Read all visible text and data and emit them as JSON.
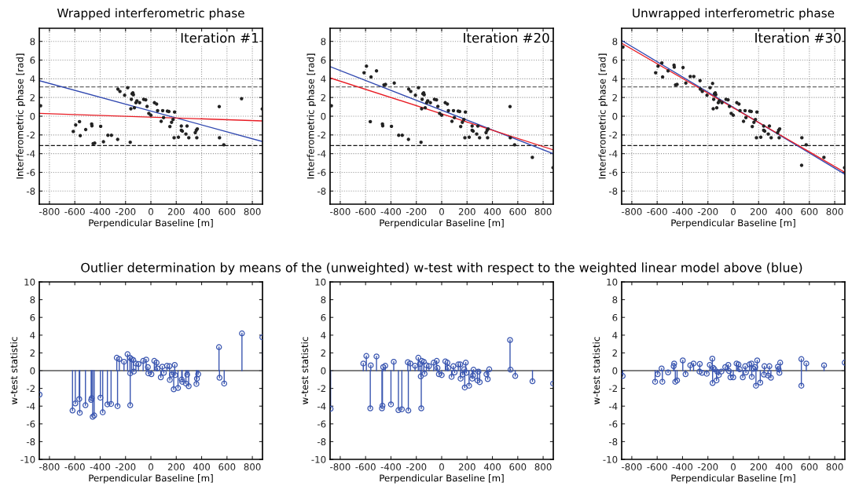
{
  "chart_data": [
    {
      "type": "scatter",
      "title": "Wrapped interferometric phase",
      "xlabel": "Perpendicular Baseline [m]",
      "ylabel": "Interferometric phase [rad]",
      "annotations": [
        "Iteration #1"
      ],
      "xlim": [
        -880,
        880
      ],
      "ylim": [
        -9.4,
        9.4
      ],
      "xticks": [
        -800,
        -600,
        -400,
        -200,
        0,
        200,
        400,
        600,
        800
      ],
      "yticks": [
        -8,
        -6,
        -4,
        -2,
        0,
        2,
        4,
        6,
        8
      ],
      "grid": true,
      "ref_lines": [
        {
          "axis": "y",
          "value": 3.14,
          "color": "#666666",
          "line_style": "dashed"
        },
        {
          "axis": "y",
          "value": -3.14,
          "color": "#111111",
          "line_style": "dashed"
        }
      ],
      "series": [
        {
          "type": "scatter",
          "color": "#222222",
          "marker": "circle",
          "x": [
            -870,
            -612,
            -593,
            -563,
            -557,
            -514,
            -467,
            -465,
            -455,
            -443,
            -396,
            -374,
            -339,
            -311,
            -262,
            -260,
            -244,
            -207,
            -183,
            -163,
            -148,
            -142,
            -138,
            -154,
            -158,
            -130,
            -118,
            -110,
            -89,
            -57,
            -41,
            -30,
            -16,
            0,
            28,
            45,
            53,
            81,
            93,
            100,
            130,
            142,
            150,
            163,
            175,
            187,
            183,
            217,
            240,
            240,
            248,
            276,
            285,
            299,
            350,
            358,
            366,
            362,
            539,
            541,
            575,
            715,
            878
          ],
          "values": [
            1.12,
            -1.63,
            -0.93,
            -0.58,
            -2.08,
            -1.43,
            -0.83,
            -1.03,
            -2.93,
            -2.88,
            -1.08,
            -2.73,
            -2.03,
            -2.03,
            -2.48,
            2.9,
            2.65,
            2.25,
            3.05,
            -2.78,
            2.4,
            2.5,
            2.3,
            1.8,
            0.8,
            0.9,
            1.45,
            1.65,
            1.45,
            1.8,
            1.75,
            1.05,
            0.3,
            0.1,
            1.45,
            1.3,
            0.6,
            -0.55,
            0.6,
            -0.15,
            0.55,
            0.5,
            -1.1,
            -0.65,
            -0.35,
            0.45,
            -2.3,
            -2.25,
            -1.05,
            -1.5,
            -1.6,
            -1.9,
            -1.05,
            -2.3,
            -1.75,
            -1.5,
            -1.35,
            -2.3,
            1.03,
            -2.3,
            -3.05,
            1.88,
            0.78
          ]
        },
        {
          "type": "line",
          "color": "#3048b0",
          "marker": "none",
          "x": [
            -880,
            880
          ],
          "values": [
            3.8,
            -2.7
          ]
        },
        {
          "type": "line",
          "color": "#e81c24",
          "marker": "none",
          "x": [
            -880,
            880
          ],
          "values": [
            0.3,
            -0.5
          ]
        }
      ]
    },
    {
      "type": "scatter",
      "xlabel": "Perpendicular Baseline [m]",
      "ylabel": "Interferometric phase [rad]",
      "annotations": [
        "Iteration #20"
      ],
      "xlim": [
        -880,
        880
      ],
      "ylim": [
        -9.4,
        9.4
      ],
      "xticks": [
        -800,
        -600,
        -400,
        -200,
        0,
        200,
        400,
        600,
        800
      ],
      "yticks": [
        -8,
        -6,
        -4,
        -2,
        0,
        2,
        4,
        6,
        8
      ],
      "grid": true,
      "ref_lines": [
        {
          "axis": "y",
          "value": 3.14,
          "color": "#666666",
          "line_style": "dashed"
        },
        {
          "axis": "y",
          "value": -3.14,
          "color": "#111111",
          "line_style": "dashed"
        }
      ],
      "series": [
        {
          "type": "scatter",
          "color": "#222222",
          "marker": "circle",
          "x": [
            -870,
            -612,
            -593,
            -563,
            -557,
            -514,
            -467,
            -465,
            -455,
            -443,
            -396,
            -374,
            -339,
            -311,
            -262,
            -260,
            -244,
            -207,
            -183,
            -163,
            -148,
            -142,
            -138,
            -154,
            -158,
            -130,
            -118,
            -110,
            -89,
            -57,
            -41,
            -30,
            -16,
            0,
            28,
            45,
            53,
            81,
            93,
            100,
            130,
            142,
            150,
            163,
            175,
            187,
            183,
            217,
            240,
            240,
            248,
            276,
            285,
            299,
            350,
            358,
            366,
            362,
            539,
            541,
            575,
            715,
            878
          ],
          "values": [
            1.12,
            4.65,
            5.35,
            -0.58,
            4.2,
            4.85,
            -0.83,
            -1.03,
            3.35,
            3.4,
            -1.08,
            3.55,
            -2.03,
            -2.03,
            -2.48,
            2.9,
            2.65,
            2.25,
            3.05,
            -2.78,
            2.4,
            2.5,
            2.3,
            1.8,
            0.8,
            0.9,
            1.45,
            1.65,
            1.45,
            1.8,
            1.75,
            1.05,
            0.3,
            0.1,
            1.45,
            1.3,
            0.6,
            -0.55,
            0.6,
            -0.15,
            0.55,
            0.5,
            -1.1,
            -0.65,
            -0.35,
            0.45,
            -2.3,
            -2.25,
            -1.05,
            -1.5,
            -1.6,
            -1.9,
            -1.05,
            -2.3,
            -1.75,
            -1.5,
            -1.35,
            -2.3,
            1.03,
            -2.3,
            -3.05,
            -4.4,
            -5.5
          ]
        },
        {
          "type": "line",
          "color": "#3048b0",
          "marker": "none",
          "x": [
            -880,
            880
          ],
          "values": [
            5.3,
            -4.0
          ]
        },
        {
          "type": "line",
          "color": "#e81c24",
          "marker": "none",
          "x": [
            -880,
            880
          ],
          "values": [
            4.1,
            -3.6
          ]
        }
      ]
    },
    {
      "type": "scatter",
      "title": "Unwrapped interferometric phase",
      "xlabel": "Perpendicular Baseline [m]",
      "ylabel": "Interferometric phase [rad]",
      "annotations": [
        "Iteration #30"
      ],
      "xlim": [
        -880,
        880
      ],
      "ylim": [
        -9.4,
        9.4
      ],
      "xticks": [
        -800,
        -600,
        -400,
        -200,
        0,
        200,
        400,
        600,
        800
      ],
      "yticks": [
        -8,
        -6,
        -4,
        -2,
        0,
        2,
        4,
        6,
        8
      ],
      "grid": true,
      "ref_lines": [
        {
          "axis": "y",
          "value": 3.14,
          "color": "#666666",
          "line_style": "dashed"
        },
        {
          "axis": "y",
          "value": -3.14,
          "color": "#111111",
          "line_style": "dashed"
        }
      ],
      "series": [
        {
          "type": "scatter",
          "color": "#222222",
          "marker": "circle",
          "x": [
            -870,
            -612,
            -593,
            -563,
            -557,
            -514,
            -467,
            -465,
            -455,
            -443,
            -396,
            -374,
            -339,
            -311,
            -262,
            -260,
            -244,
            -207,
            -183,
            -163,
            -148,
            -142,
            -138,
            -154,
            -158,
            -130,
            -118,
            -110,
            -89,
            -57,
            -41,
            -30,
            -16,
            0,
            28,
            45,
            53,
            81,
            93,
            100,
            130,
            142,
            150,
            163,
            175,
            187,
            183,
            217,
            240,
            240,
            248,
            276,
            285,
            299,
            350,
            358,
            366,
            362,
            539,
            541,
            575,
            715,
            878
          ],
          "values": [
            7.4,
            4.65,
            5.35,
            5.7,
            4.2,
            4.85,
            5.45,
            5.25,
            3.35,
            3.4,
            5.2,
            3.55,
            4.25,
            4.25,
            3.8,
            2.9,
            2.65,
            2.25,
            3.05,
            3.5,
            2.4,
            2.5,
            2.3,
            1.8,
            0.8,
            0.9,
            1.45,
            1.65,
            1.45,
            1.8,
            1.75,
            1.05,
            0.3,
            0.1,
            1.45,
            1.3,
            0.6,
            -0.55,
            0.6,
            -0.15,
            0.55,
            0.5,
            -1.1,
            -0.65,
            -0.35,
            0.45,
            -2.3,
            -2.25,
            -1.05,
            -1.5,
            -1.6,
            -1.9,
            -1.05,
            -2.3,
            -1.75,
            -1.5,
            -1.35,
            -2.3,
            -5.25,
            -2.3,
            -3.05,
            -4.4,
            -5.5
          ]
        },
        {
          "type": "line",
          "color": "#3048b0",
          "marker": "none",
          "x": [
            -880,
            880
          ],
          "values": [
            8.1,
            -6.2
          ]
        },
        {
          "type": "line",
          "color": "#e81c24",
          "marker": "none",
          "x": [
            -880,
            880
          ],
          "values": [
            7.8,
            -6.0
          ]
        }
      ]
    },
    {
      "type": "lollipop",
      "xlabel": "Perpendicular Baseline [m]",
      "ylabel": "w-test statistic",
      "xlim": [
        -880,
        880
      ],
      "ylim": [
        -10,
        10
      ],
      "xticks": [
        -800,
        -600,
        -400,
        -200,
        0,
        200,
        400,
        600,
        800
      ],
      "yticks": [
        -10,
        -8,
        -6,
        -4,
        -2,
        0,
        2,
        4,
        6,
        8,
        10
      ],
      "ref_lines": [
        {
          "axis": "y",
          "value": 0,
          "color": "#555555",
          "line_style": "solid"
        }
      ],
      "series": [
        {
          "color": "#3a56b0",
          "marker": "circle",
          "x": [
            -878,
            -618,
            -596,
            -565,
            -561,
            -516,
            -471,
            -467,
            -459,
            -447,
            -398,
            -380,
            -343,
            -314,
            -269,
            -249,
            -263,
            -212,
            -184,
            -165,
            -163,
            -163,
            -153,
            -139,
            -135,
            -118,
            -98,
            -61,
            -37,
            -24,
            -20,
            4,
            27,
            45,
            51,
            78,
            90,
            102,
            127,
            147,
            149,
            165,
            180,
            188,
            192,
            214,
            243,
            247,
            276,
            286,
            298,
            359,
            363,
            373,
            537,
            541,
            578,
            718,
            879
          ],
          "values": [
            -2.7,
            -4.5,
            -3.7,
            -3.2,
            -4.75,
            -3.9,
            -3.3,
            -3.1,
            -5.2,
            -5.05,
            -3.05,
            -4.7,
            -3.8,
            -3.75,
            1.45,
            1.3,
            -4.0,
            1.0,
            1.85,
            1.45,
            -0.3,
            -3.9,
            1.3,
            1.2,
            -0.1,
            0.8,
            0.75,
            1.1,
            1.25,
            0.4,
            -0.3,
            -0.4,
            1.1,
            0.9,
            0.25,
            -0.75,
            0.45,
            -0.25,
            0.55,
            0.5,
            -1.05,
            -0.45,
            -2.1,
            0.65,
            -0.5,
            -1.95,
            -1.0,
            -1.25,
            -1.45,
            -0.45,
            -1.75,
            -1.5,
            -0.9,
            -0.4,
            2.65,
            -0.8,
            -1.45,
            4.2,
            3.75
          ]
        }
      ]
    },
    {
      "type": "lollipop",
      "title": "Outlier determination by means of the (unweighted) w-test with respect to the weighted linear model above (blue)",
      "xlabel": "Perpendicular Baseline [m]",
      "ylabel": "w-test statistic",
      "xlim": [
        -880,
        880
      ],
      "ylim": [
        -10,
        10
      ],
      "xticks": [
        -800,
        -600,
        -400,
        -200,
        0,
        200,
        400,
        600,
        800
      ],
      "yticks": [
        -10,
        -8,
        -6,
        -4,
        -2,
        0,
        2,
        4,
        6,
        8,
        10
      ],
      "ref_lines": [
        {
          "axis": "y",
          "value": 0,
          "color": "#555555",
          "line_style": "solid"
        }
      ],
      "series": [
        {
          "color": "#3a56b0",
          "marker": "circle",
          "x": [
            -876,
            -618,
            -594,
            -563,
            -559,
            -514,
            -471,
            -467,
            -461,
            -445,
            -400,
            -378,
            -341,
            -314,
            -267,
            -263,
            -247,
            -210,
            -184,
            -171,
            -165,
            -161,
            -157,
            -141,
            -135,
            -120,
            -100,
            -63,
            -39,
            -33,
            -22,
            0,
            29,
            45,
            51,
            78,
            92,
            102,
            131,
            147,
            149,
            165,
            178,
            182,
            190,
            194,
            216,
            241,
            247,
            251,
            282,
            290,
            300,
            353,
            363,
            375,
            539,
            543,
            580,
            716,
            879
          ],
          "values": [
            -4.3,
            0.8,
            1.65,
            -4.25,
            0.6,
            1.6,
            -4.25,
            -3.95,
            0.4,
            0.55,
            -3.8,
            1.0,
            -4.45,
            -4.35,
            0.95,
            -4.5,
            0.8,
            0.55,
            1.45,
            0.75,
            -0.65,
            -4.25,
            1.1,
            1.0,
            -0.35,
            0.6,
            0.5,
            0.9,
            1.1,
            0.3,
            -0.4,
            -0.5,
            1.05,
            0.9,
            0.3,
            -0.7,
            0.5,
            -0.2,
            0.7,
            0.7,
            -0.9,
            -0.45,
            0.15,
            -1.9,
            0.9,
            -0.25,
            -1.7,
            -0.9,
            -0.55,
            0.1,
            -1.1,
            -0.1,
            -1.3,
            -0.4,
            -0.95,
            0.15,
            3.45,
            0.1,
            -0.6,
            -1.2,
            -1.45
          ]
        }
      ]
    },
    {
      "type": "lollipop",
      "xlabel": "Perpendicular Baseline [m]",
      "ylabel": "w-test statistic",
      "xlim": [
        -880,
        880
      ],
      "ylim": [
        -10,
        10
      ],
      "xticks": [
        -800,
        -600,
        -400,
        -200,
        0,
        200,
        400,
        600,
        800
      ],
      "yticks": [
        -10,
        -8,
        -6,
        -4,
        -2,
        0,
        2,
        4,
        6,
        8,
        10
      ],
      "ref_lines": [
        {
          "axis": "y",
          "value": 0,
          "color": "#555555",
          "line_style": "solid"
        }
      ],
      "series": [
        {
          "color": "#3a56b0",
          "marker": "circle",
          "x": [
            -872,
            -616,
            -596,
            -565,
            -559,
            -514,
            -470,
            -466,
            -457,
            -443,
            -398,
            -376,
            -339,
            -313,
            -264,
            -266,
            -246,
            -209,
            -185,
            -165,
            -163,
            -157,
            -148,
            -132,
            -124,
            -114,
            -94,
            -63,
            -39,
            -33,
            -22,
            0,
            26,
            41,
            51,
            75,
            94,
            100,
            128,
            144,
            146,
            161,
            179,
            189,
            173,
            213,
            242,
            246,
            274,
            285,
            297,
            352,
            358,
            364,
            370,
            537,
            537,
            576,
            716,
            879
          ],
          "values": [
            -0.6,
            -1.25,
            -0.4,
            0.25,
            -1.25,
            -0.2,
            0.5,
            0.8,
            -1.25,
            -1.1,
            1.15,
            -0.4,
            0.6,
            0.8,
            0.75,
            -0.1,
            -0.25,
            -0.35,
            0.65,
            1.35,
            -1.4,
            0.3,
            0.15,
            -1.1,
            -0.15,
            -0.5,
            -0.1,
            0.4,
            0.65,
            -0.05,
            -0.75,
            -0.75,
            0.8,
            0.7,
            0.15,
            -0.75,
            0.5,
            -0.2,
            0.7,
            0.8,
            -0.7,
            0.2,
            -1.7,
            1.15,
            0.4,
            -1.35,
            -0.45,
            0.5,
            -0.55,
            0.5,
            -0.8,
            0.45,
            0.15,
            -0.25,
            0.9,
            1.3,
            -1.7,
            0.8,
            0.6,
            0.9
          ]
        }
      ]
    }
  ]
}
